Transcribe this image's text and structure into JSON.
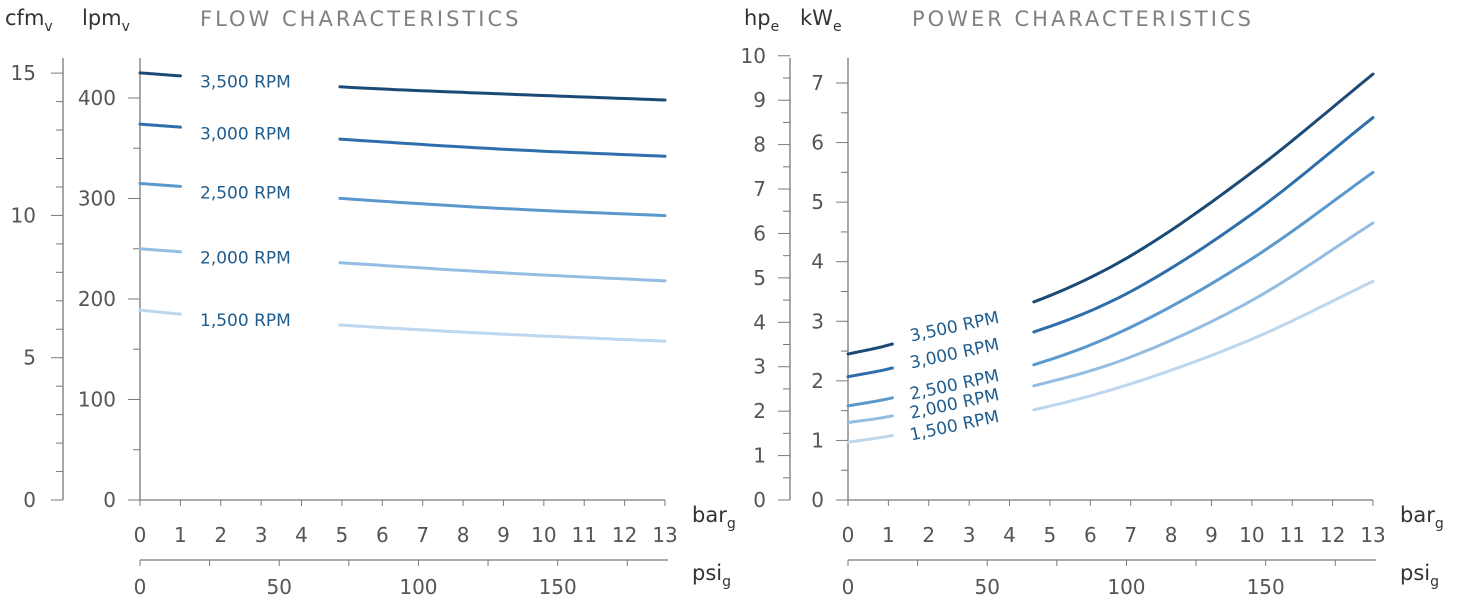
{
  "chart_data": [
    {
      "type": "line",
      "title": "FLOW CHARACTERISTICS",
      "y_left_unit": {
        "main": "cfm",
        "sub": "v"
      },
      "y_right_unit": {
        "main": "lpm",
        "sub": "v"
      },
      "x_unit_bar": {
        "main": "bar",
        "sub": "g"
      },
      "x_unit_psi": {
        "main": "psi",
        "sub": "g"
      },
      "x_ticks": [
        "0",
        "1",
        "2",
        "3",
        "4",
        "5",
        "6",
        "7",
        "8",
        "9",
        "10",
        "11",
        "12",
        "13"
      ],
      "psi_ticks": [
        "0",
        "50",
        "100",
        "150"
      ],
      "cfm_ticks": [
        "0",
        "5",
        "10",
        "15"
      ],
      "lpm_ticks": [
        "0",
        "100",
        "200",
        "300",
        "400"
      ],
      "xlim": [
        0,
        13
      ],
      "ylim_lpm": [
        0,
        440
      ],
      "series": [
        {
          "name": "3,500 RPM",
          "color": "#1b4a76",
          "x": [
            0,
            1,
            5,
            9,
            13
          ],
          "y": [
            425,
            422,
            411,
            404,
            398
          ]
        },
        {
          "name": "3,000 RPM",
          "color": "#2e6eaa",
          "x": [
            0,
            1,
            5,
            9,
            13
          ],
          "y": [
            374,
            371,
            359,
            349,
            342
          ]
        },
        {
          "name": "2,500 RPM",
          "color": "#5b98cd",
          "x": [
            0,
            1,
            5,
            9,
            13
          ],
          "y": [
            315,
            312,
            300,
            290,
            283
          ]
        },
        {
          "name": "2,000 RPM",
          "color": "#93bde2",
          "x": [
            0,
            1,
            5,
            9,
            13
          ],
          "y": [
            250,
            247,
            236,
            226,
            218
          ]
        },
        {
          "name": "1,500 RPM",
          "color": "#bcd7ee",
          "x": [
            0,
            1,
            5,
            9,
            13
          ],
          "y": [
            189,
            185,
            174,
            165,
            158
          ]
        }
      ]
    },
    {
      "type": "line",
      "title": "POWER CHARACTERISTICS",
      "y_left_unit": {
        "main": "hp",
        "sub": "e"
      },
      "y_right_unit": {
        "main": "kW",
        "sub": "e"
      },
      "x_unit_bar": {
        "main": "bar",
        "sub": "g"
      },
      "x_unit_psi": {
        "main": "psi",
        "sub": "g"
      },
      "x_ticks": [
        "0",
        "1",
        "2",
        "3",
        "4",
        "5",
        "6",
        "7",
        "8",
        "9",
        "10",
        "11",
        "12",
        "13"
      ],
      "psi_ticks": [
        "0",
        "50",
        "100",
        "150"
      ],
      "hp_ticks": [
        "0",
        "1",
        "2",
        "3",
        "4",
        "5",
        "6",
        "7",
        "8",
        "9",
        "10"
      ],
      "kw_ticks": [
        "0",
        "1",
        "2",
        "3",
        "4",
        "5",
        "6",
        "7"
      ],
      "xlim": [
        0,
        13
      ],
      "ylim_kw": [
        0,
        7.5
      ],
      "series": [
        {
          "name": "3,500 RPM",
          "color": "#1b4a76",
          "x": [
            0,
            1,
            4.5,
            7,
            10,
            13
          ],
          "y": [
            2.45,
            2.6,
            3.3,
            4.1,
            5.5,
            7.15
          ]
        },
        {
          "name": "3,000 RPM",
          "color": "#2e6eaa",
          "x": [
            0,
            1,
            4.5,
            7,
            10,
            13
          ],
          "y": [
            2.07,
            2.2,
            2.8,
            3.5,
            4.8,
            6.42
          ]
        },
        {
          "name": "2,500 RPM",
          "color": "#5b98cd",
          "x": [
            0,
            1,
            4.5,
            7,
            10,
            13
          ],
          "y": [
            1.58,
            1.7,
            2.25,
            2.9,
            4.05,
            5.5
          ]
        },
        {
          "name": "2,000 RPM",
          "color": "#93bde2",
          "x": [
            0,
            1,
            4.5,
            7,
            10,
            13
          ],
          "y": [
            1.3,
            1.4,
            1.9,
            2.4,
            3.35,
            4.65
          ]
        },
        {
          "name": "1,500 RPM",
          "color": "#bcd7ee",
          "x": [
            0,
            1,
            4.5,
            7,
            10,
            13
          ],
          "y": [
            0.97,
            1.07,
            1.5,
            1.95,
            2.7,
            3.67
          ]
        }
      ]
    }
  ]
}
